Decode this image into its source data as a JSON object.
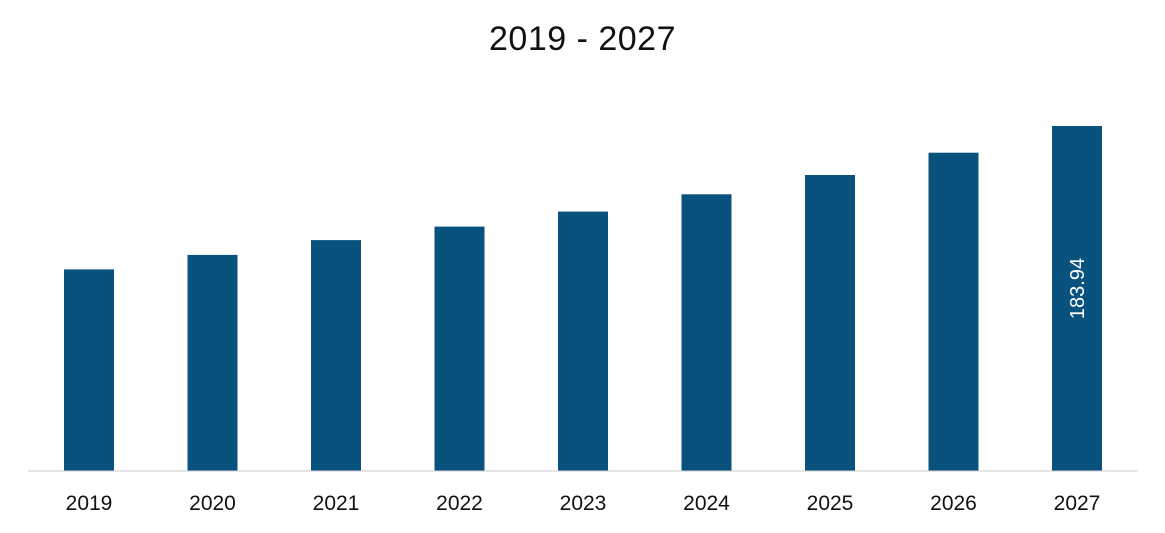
{
  "chart_data": {
    "type": "bar",
    "title": "2019 - 2027",
    "categories": [
      "2019",
      "2020",
      "2021",
      "2022",
      "2023",
      "2024",
      "2025",
      "2026",
      "2027"
    ],
    "series": [
      {
        "values": [
          107.5,
          115.2,
          123.1,
          130.3,
          138.3,
          147.5,
          157.8,
          169.7,
          183.94
        ],
        "color": "#0a527e"
      }
    ],
    "data_labels": [
      {
        "category": "2027",
        "text": "183.94",
        "orientation": "vertical"
      }
    ],
    "xlabel": "",
    "ylabel": "",
    "ylim": [
      0,
      183.94
    ],
    "grid": false,
    "legend": "none",
    "axis_color": "#cccccc"
  }
}
